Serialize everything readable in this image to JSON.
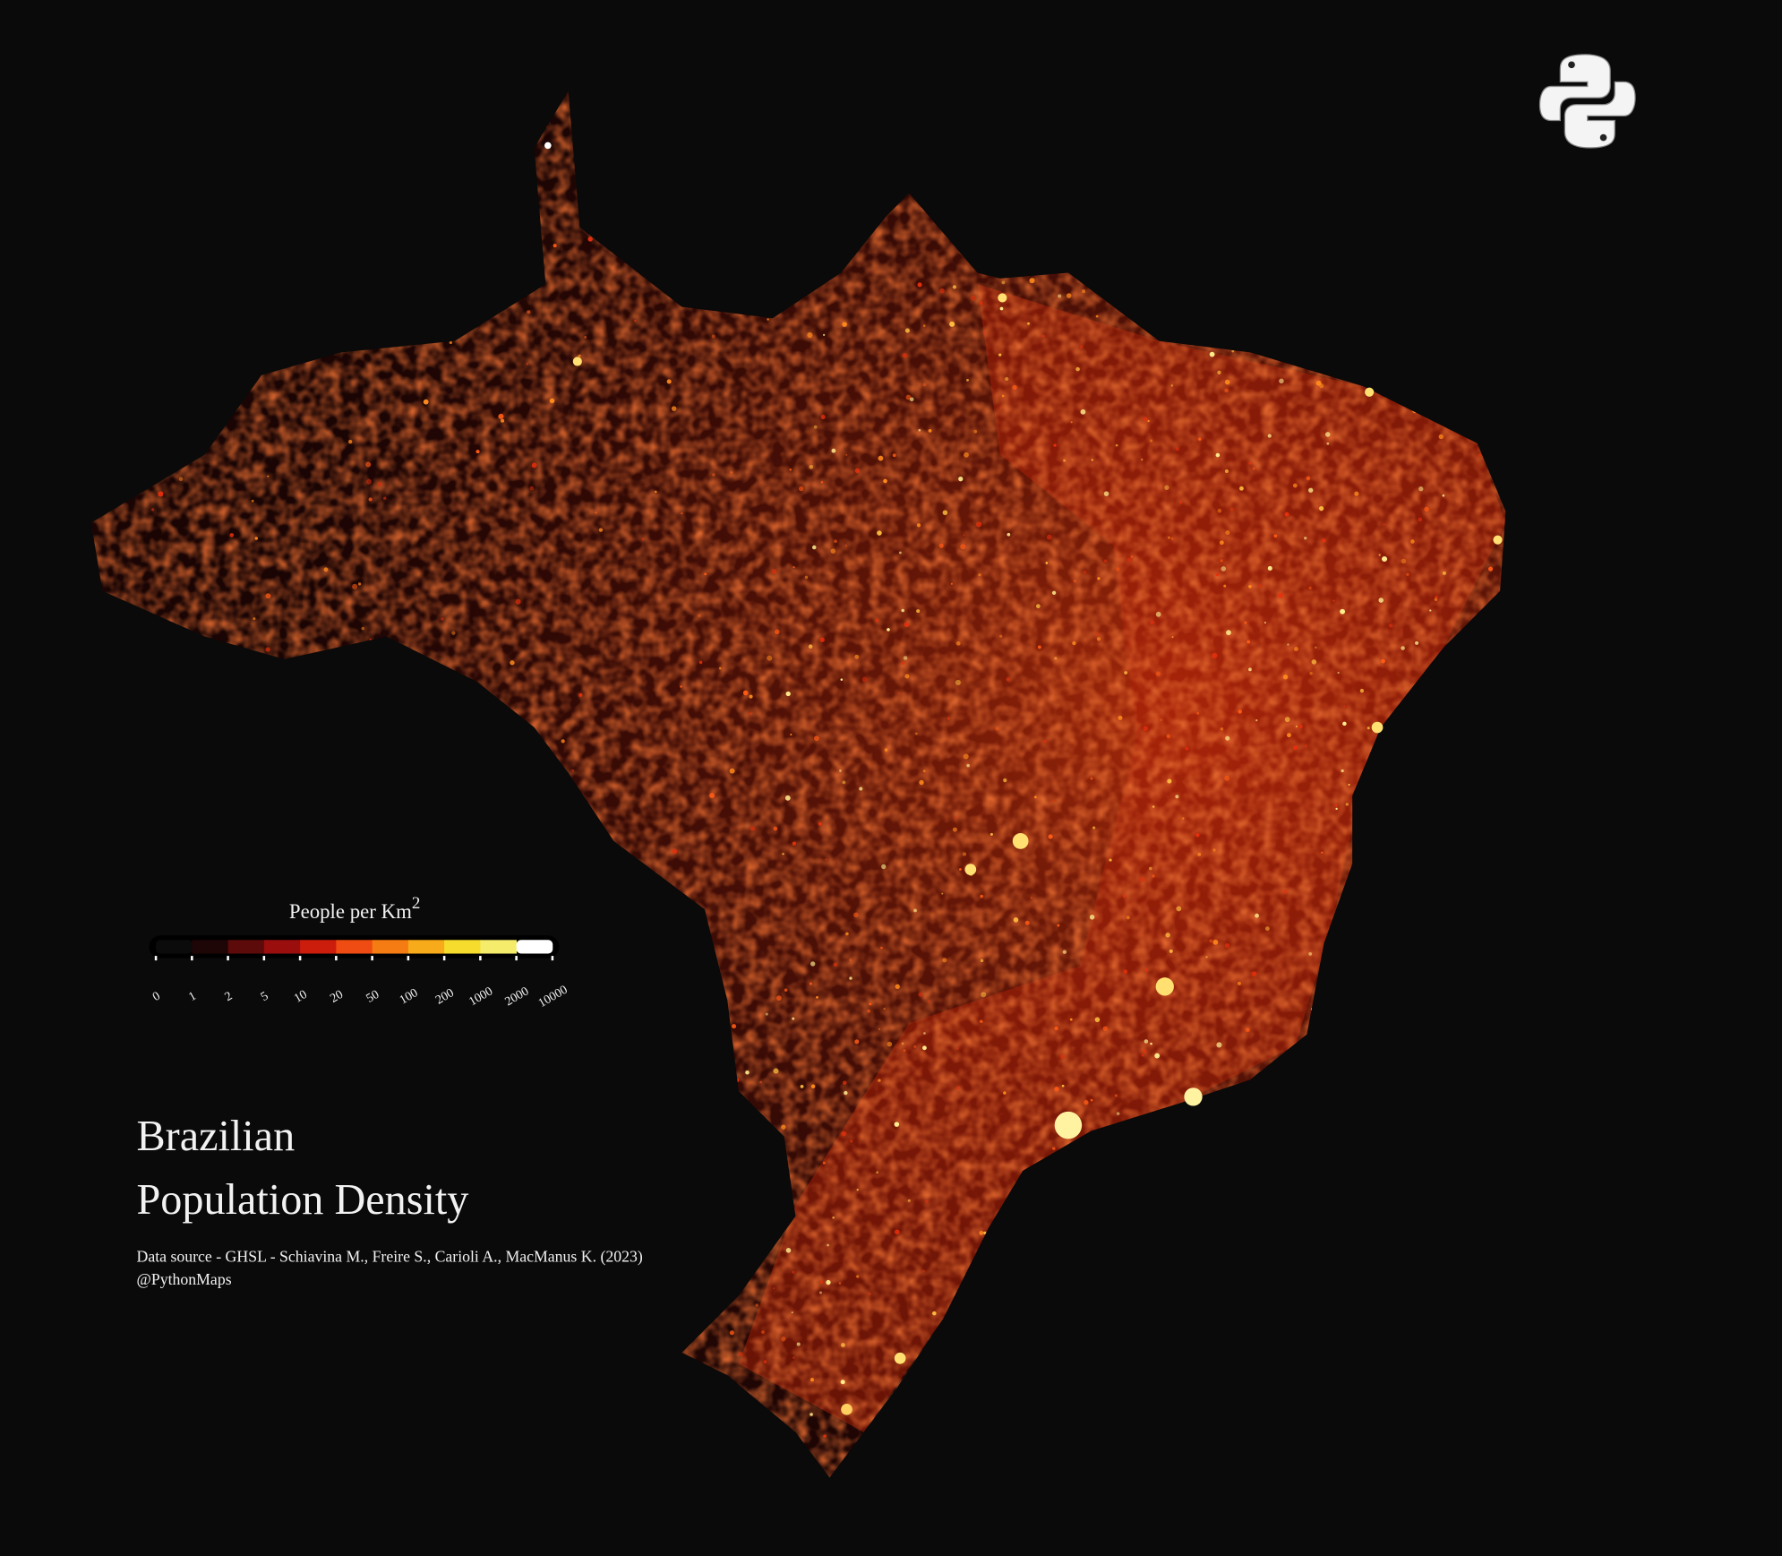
{
  "map": {
    "title_lines": [
      "Brazilian",
      "Population Density"
    ],
    "source": "Data source - GHSL - Schiavina M., Freire S., Carioli A., MacManus K. (2023)",
    "credit": "@PythonMaps",
    "legend": {
      "title": "People per Km",
      "title_superscript": "2",
      "ticks": [
        0,
        1,
        2,
        5,
        10,
        20,
        50,
        100,
        200,
        1000,
        2000,
        10000
      ],
      "colors": [
        "#0c0b0b",
        "#1e0506",
        "#5c0a0a",
        "#9a0e0e",
        "#cc1c0c",
        "#ee4c12",
        "#f47c12",
        "#f7aa1a",
        "#f6dc2c",
        "#f4ec6a",
        "#ffffff"
      ]
    }
  }
}
